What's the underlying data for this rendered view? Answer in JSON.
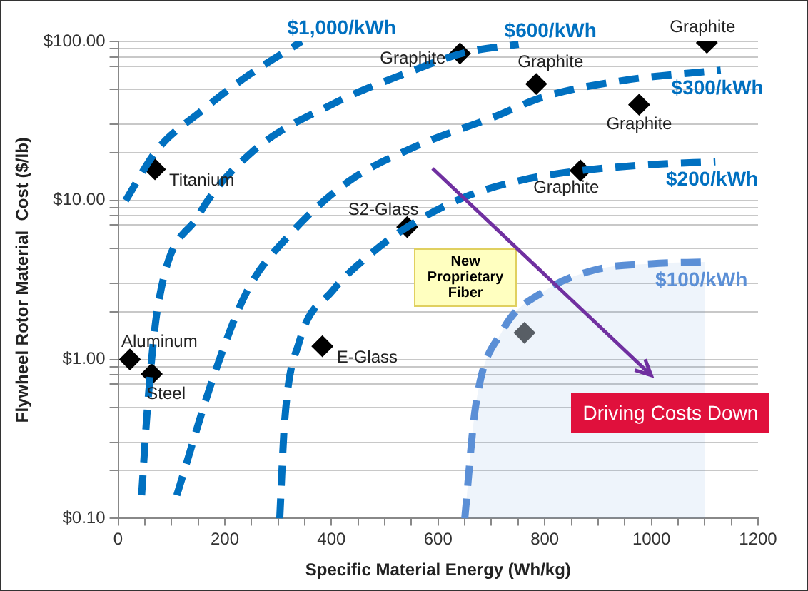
{
  "chart_data": {
    "type": "scatter",
    "xlabel": "Specific Material Energy (Wh/kg)",
    "ylabel": "Flywheel Rotor Material  Cost ($/lb)",
    "log": "y",
    "grid": "y",
    "legend": false,
    "xlim": [
      0,
      1200
    ],
    "xticks": [
      0,
      {
        "value": 50,
        "label": null
      },
      {
        "value": 100,
        "label": null
      },
      {
        "value": 150,
        "label": null
      },
      200,
      {
        "value": 250,
        "label": null
      },
      {
        "value": 300,
        "label": null
      },
      {
        "value": 350,
        "label": null
      },
      400,
      {
        "value": 450,
        "label": null
      },
      {
        "value": 500,
        "label": null
      },
      {
        "value": 550,
        "label": null
      },
      600,
      {
        "value": 650,
        "label": null
      },
      {
        "value": 700,
        "label": null
      },
      {
        "value": 750,
        "label": null
      },
      800,
      {
        "value": 850,
        "label": null
      },
      {
        "value": 900,
        "label": null
      },
      {
        "value": 950,
        "label": null
      },
      1000,
      {
        "value": 1050,
        "label": null
      },
      {
        "value": 1100,
        "label": null
      },
      {
        "value": 1150,
        "label": null
      },
      1200
    ],
    "ylim": [
      0.1,
      100
    ],
    "yticks": [
      {
        "value": 0.1,
        "label": "$0.10"
      },
      {
        "value": 0.2,
        "label": null
      },
      {
        "value": 0.3,
        "label": null
      },
      {
        "value": 0.5,
        "label": null
      },
      {
        "value": 0.7,
        "label": null
      },
      {
        "value": 0.8,
        "label": null
      },
      {
        "value": 0.9,
        "label": null
      },
      {
        "value": 1,
        "label": "$1.00"
      },
      {
        "value": 2,
        "label": null
      },
      {
        "value": 3,
        "label": null
      },
      {
        "value": 5,
        "label": null
      },
      {
        "value": 7,
        "label": null
      },
      {
        "value": 8,
        "label": null
      },
      {
        "value": 9,
        "label": null
      },
      {
        "value": 10,
        "label": "$10.00"
      },
      {
        "value": 20,
        "label": null
      },
      {
        "value": 30,
        "label": null
      },
      {
        "value": 50,
        "label": null
      },
      {
        "value": 70,
        "label": null
      },
      {
        "value": 80,
        "label": null
      },
      {
        "value": 90,
        "label": null
      },
      {
        "value": 100,
        "label": "$100.00"
      }
    ],
    "series": [
      {
        "name": "$1,000/kWh",
        "type": "line",
        "line_style": "dashed",
        "color": "#0070c0",
        "x": [
          14,
          74,
          154,
          234,
          344
        ],
        "values": [
          10,
          21,
          36,
          58,
          100
        ]
      },
      {
        "name": "$600/kWh",
        "type": "line",
        "line_style": "dashed",
        "color": "#0070c0",
        "x": [
          44,
          55,
          74,
          150,
          250,
          400,
          550,
          650,
          751
        ],
        "values": [
          0.14,
          0.5,
          2.1,
          8,
          20,
          40,
          65,
          85,
          96
        ]
      },
      {
        "name": "$300/kWh",
        "type": "line",
        "line_style": "dashed",
        "color": "#0070c0",
        "x": [
          110,
          180,
          242,
          320,
          430,
          560,
          700,
          800,
          950,
          1130
        ],
        "values": [
          0.14,
          0.8,
          2.7,
          6,
          13,
          22,
          33,
          45,
          57,
          66
        ]
      },
      {
        "name": "$200/kWh",
        "type": "line",
        "line_style": "dashed",
        "color": "#0070c0",
        "x": [
          303,
          312,
          340,
          402,
          470,
          542,
          650,
          760,
          867,
          1000,
          1120
        ],
        "values": [
          0.1,
          0.4,
          1.3,
          2.7,
          4.5,
          6.8,
          10.5,
          13.5,
          15.4,
          16.8,
          17.5
        ]
      },
      {
        "name": "$100/kWh",
        "type": "area",
        "line_style": "dashed",
        "color": "#5b8fd6",
        "x": [
          650,
          670,
          720,
          800,
          900,
          1000,
          1100
        ],
        "values": [
          0.1,
          0.5,
          1.5,
          2.7,
          3.7,
          4,
          4.1
        ]
      },
      {
        "marker": "diamond",
        "color": "#000000",
        "colors": [
          "#000000",
          "#000000",
          "#000000",
          "#000000",
          "#000000",
          "#000000",
          "#000000",
          "#000000",
          "#000000",
          "#000000",
          "#595959"
        ],
        "x": [
          69,
          22,
          63,
          383,
          542,
          641,
          784,
          977,
          867,
          1104,
          762
        ],
        "values": [
          15.7,
          1,
          0.81,
          1.21,
          6.8,
          84,
          54,
          40,
          15.4,
          98,
          1.47
        ]
      }
    ],
    "annotations": [
      {
        "text": "Titanium",
        "x": 69,
        "y": 15.7
      },
      {
        "text": "Aluminum",
        "x": 22,
        "y": 1
      },
      {
        "text": "Steel",
        "x": 63,
        "y": 0.81
      },
      {
        "text": "E-Glass",
        "x": 383,
        "y": 1.21
      },
      {
        "text": "S2-Glass",
        "x": 542,
        "y": 6.8
      },
      {
        "text": "Graphite",
        "x": 641,
        "y": 84
      },
      {
        "text": "Graphite",
        "x": 784,
        "y": 54
      },
      {
        "text": "Graphite",
        "x": 977,
        "y": 40
      },
      {
        "text": "Graphite",
        "x": 867,
        "y": 15.4
      },
      {
        "text": "Graphite",
        "x": 1104,
        "y": 98
      },
      "New Proprietary Fiber",
      "Driving Costs Down"
    ]
  }
}
